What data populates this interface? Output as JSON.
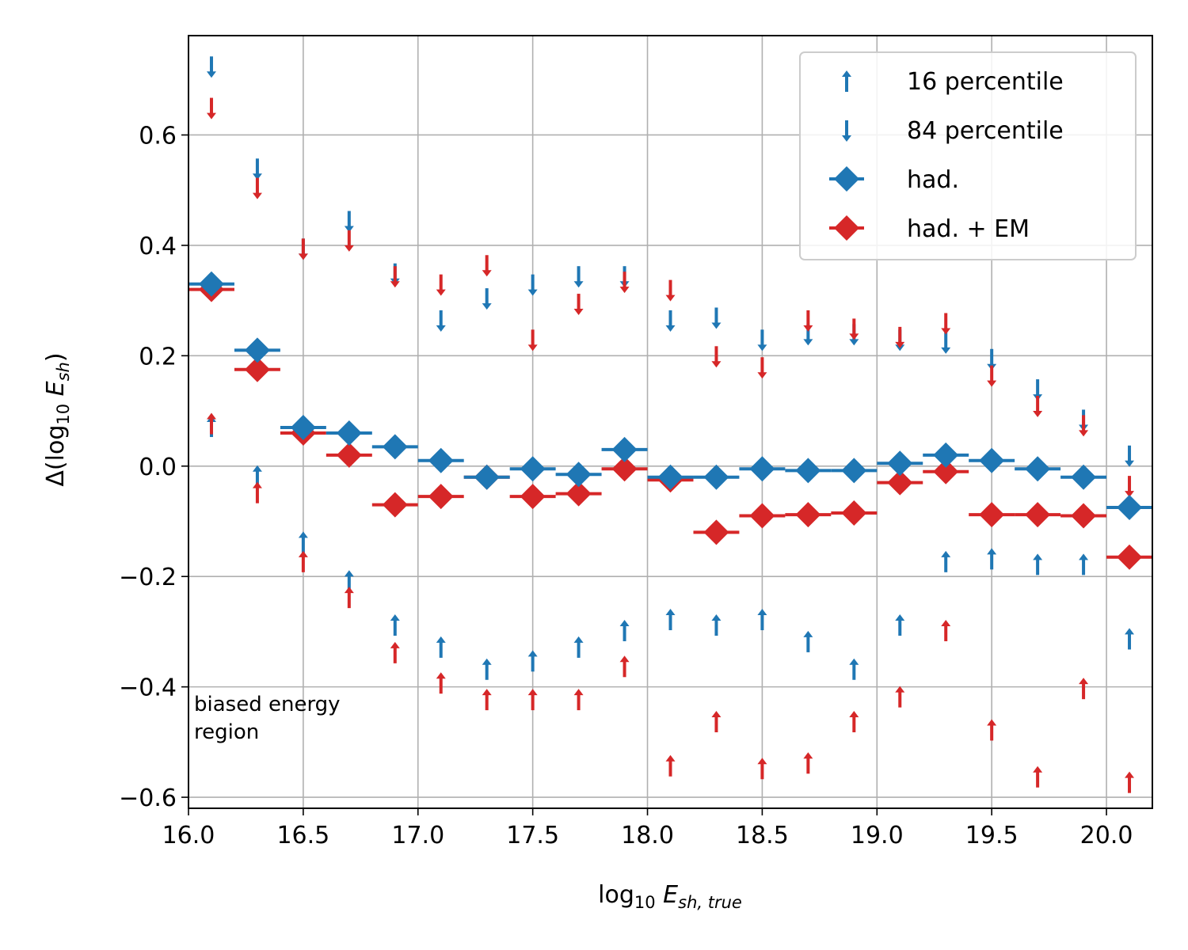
{
  "chart_data": {
    "type": "scatter",
    "xlabel": {
      "main": "log",
      "sub": "10",
      "italic": "E",
      "isub": "sh, true"
    },
    "ylabel": {
      "pre": "Δ(log",
      "sub": "10",
      "italic": "E",
      "isub": "sh",
      "post": ")"
    },
    "xlim": [
      16.0,
      20.2
    ],
    "ylim": [
      -0.62,
      0.78
    ],
    "xticks": [
      16.0,
      16.5,
      17.0,
      17.5,
      18.0,
      18.5,
      19.0,
      19.5,
      20.0
    ],
    "xtick_labels": [
      "16.0",
      "16.5",
      "17.0",
      "17.5",
      "18.0",
      "18.5",
      "19.0",
      "19.5",
      "20.0"
    ],
    "yticks": [
      -0.6,
      -0.4,
      -0.2,
      0.0,
      0.2,
      0.4,
      0.6
    ],
    "ytick_labels": [
      "−0.6",
      "−0.4",
      "−0.2",
      "0.0",
      "0.2",
      "0.4",
      "0.6"
    ],
    "grid": true,
    "legend_position": "top-right",
    "annotation": [
      "biased energy",
      "region"
    ],
    "x": [
      16.1,
      16.3,
      16.5,
      16.7,
      16.9,
      17.1,
      17.3,
      17.5,
      17.7,
      17.9,
      18.1,
      18.3,
      18.5,
      18.7,
      18.9,
      19.1,
      19.3,
      19.5,
      19.7,
      19.9,
      20.1
    ],
    "bin_halfwidth": 0.1,
    "series": [
      {
        "name": "16 percentile",
        "group": "had.",
        "marker": "arrow-up",
        "color": "#1f77b4",
        "values": [
          0.09,
          0.0,
          -0.12,
          -0.19,
          -0.27,
          -0.31,
          -0.35,
          -0.335,
          -0.31,
          -0.28,
          -0.26,
          -0.27,
          -0.26,
          -0.3,
          -0.35,
          -0.27,
          -0.155,
          -0.15,
          -0.16,
          -0.16,
          -0.295
        ]
      },
      {
        "name": "84 percentile",
        "group": "had.",
        "marker": "arrow-down",
        "color": "#1f77b4",
        "values": [
          0.705,
          0.52,
          0.375,
          0.425,
          0.33,
          0.245,
          0.285,
          0.31,
          0.325,
          0.325,
          0.245,
          0.25,
          0.21,
          0.22,
          0.22,
          0.21,
          0.205,
          0.175,
          0.12,
          0.065,
          0.0
        ]
      },
      {
        "name": "",
        "group": "had. + EM",
        "marker": "arrow-up",
        "color": "#d62728",
        "values": [
          0.095,
          -0.03,
          -0.155,
          -0.22,
          -0.32,
          -0.375,
          -0.405,
          -0.405,
          -0.405,
          -0.345,
          -0.525,
          -0.445,
          -0.53,
          -0.52,
          -0.445,
          -0.4,
          -0.28,
          -0.46,
          -0.545,
          -0.385,
          -0.555
        ]
      },
      {
        "name": "",
        "group": "had. + EM",
        "marker": "arrow-down",
        "color": "#d62728",
        "values": [
          0.63,
          0.485,
          0.375,
          0.39,
          0.325,
          0.31,
          0.345,
          0.21,
          0.275,
          0.315,
          0.3,
          0.18,
          0.16,
          0.245,
          0.23,
          0.215,
          0.24,
          0.145,
          0.09,
          0.055,
          -0.055
        ]
      },
      {
        "name": "had.",
        "marker": "diamond",
        "color": "#1f77b4",
        "values": [
          0.33,
          0.21,
          0.07,
          0.06,
          0.035,
          0.01,
          -0.02,
          -0.005,
          -0.015,
          0.03,
          -0.02,
          -0.02,
          -0.005,
          -0.008,
          -0.008,
          0.005,
          0.02,
          0.01,
          -0.005,
          -0.02,
          -0.075
        ]
      },
      {
        "name": "had. + EM",
        "marker": "diamond",
        "color": "#d62728",
        "values": [
          0.32,
          0.175,
          0.06,
          0.02,
          -0.07,
          -0.055,
          -0.02,
          -0.055,
          -0.05,
          -0.005,
          -0.025,
          -0.12,
          -0.09,
          -0.088,
          -0.085,
          -0.03,
          -0.01,
          -0.088,
          -0.088,
          -0.09,
          -0.165
        ]
      }
    ],
    "legend": [
      {
        "label": "16 percentile",
        "marker": "arrow-up",
        "color": "#1f77b4"
      },
      {
        "label": "84 percentile",
        "marker": "arrow-down",
        "color": "#1f77b4"
      },
      {
        "label": "had.",
        "marker": "diamond-bar",
        "color": "#1f77b4"
      },
      {
        "label": "had. + EM",
        "marker": "diamond-bar",
        "color": "#d62728"
      }
    ]
  }
}
